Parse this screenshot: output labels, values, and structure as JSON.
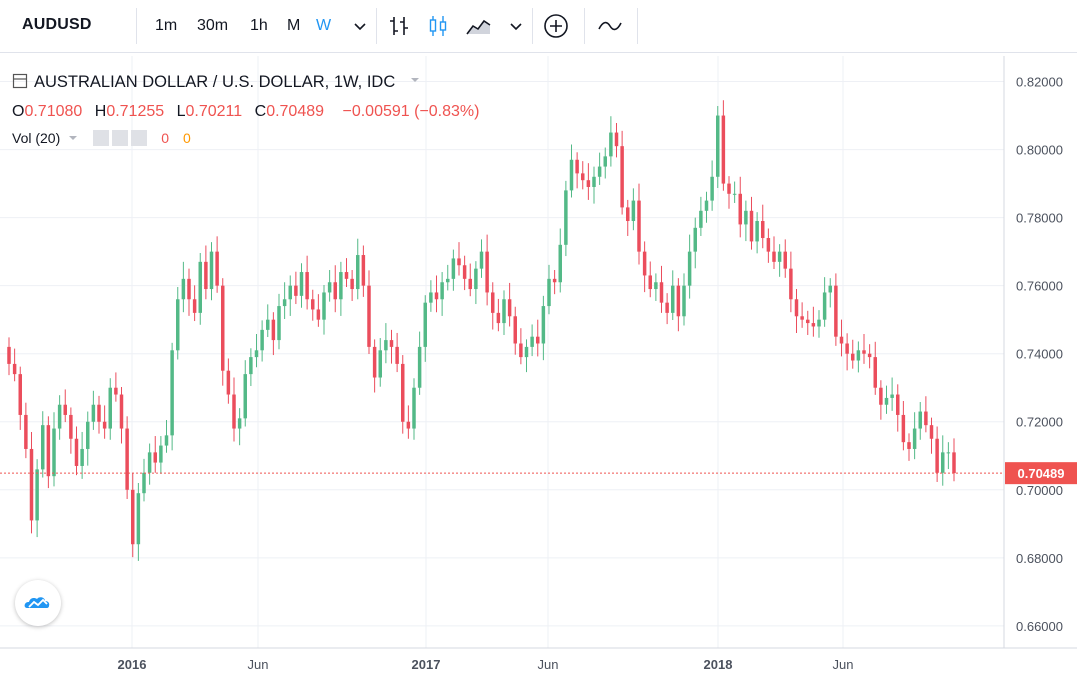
{
  "toolbar": {
    "symbol": "AUDUSD",
    "intervals": [
      "1m",
      "30m",
      "1h",
      "M",
      "W"
    ],
    "active_interval": "W"
  },
  "legend": {
    "title": "AUSTRALIAN DOLLAR / U.S. DOLLAR, 1W, IDC",
    "open_label": "O",
    "open": "0.71080",
    "high_label": "H",
    "high": "0.71255",
    "low_label": "L",
    "low": "0.70211",
    "close_label": "C",
    "close": "0.70489",
    "change": "−0.00591 (−0.83%)",
    "volume_label": "Vol (20)",
    "volume_value": "0",
    "volume_ma_value": "0"
  },
  "colors": {
    "up": "#53b987",
    "down": "#eb4d5c",
    "grid": "#f0f3fa",
    "axis_text": "#4c525e",
    "accent": "#2196f3"
  },
  "chart_data": {
    "type": "candlestick",
    "title": "AUSTRALIAN DOLLAR / U.S. DOLLAR, 1W, IDC",
    "last_price": 0.70489,
    "y_ticks": [
      "0.82000",
      "0.80000",
      "0.78000",
      "0.76000",
      "0.74000",
      "0.72000",
      "0.70000",
      "0.68000",
      "0.66000"
    ],
    "y_range": [
      0.6535,
      0.8275
    ],
    "x_labels": [
      "2016",
      "Jun",
      "2017",
      "Jun",
      "2018",
      "Jun"
    ],
    "closes": [
      0.737,
      0.734,
      0.722,
      0.712,
      0.691,
      0.706,
      0.719,
      0.704,
      0.718,
      0.725,
      0.722,
      0.715,
      0.707,
      0.712,
      0.72,
      0.725,
      0.72,
      0.718,
      0.73,
      0.728,
      0.718,
      0.7,
      0.684,
      0.699,
      0.705,
      0.711,
      0.708,
      0.713,
      0.716,
      0.741,
      0.756,
      0.762,
      0.756,
      0.752,
      0.767,
      0.759,
      0.77,
      0.76,
      0.735,
      0.728,
      0.718,
      0.721,
      0.734,
      0.739,
      0.741,
      0.747,
      0.75,
      0.744,
      0.754,
      0.756,
      0.76,
      0.757,
      0.764,
      0.756,
      0.753,
      0.75,
      0.758,
      0.761,
      0.756,
      0.764,
      0.762,
      0.759,
      0.769,
      0.76,
      0.742,
      0.733,
      0.741,
      0.744,
      0.742,
      0.737,
      0.72,
      0.718,
      0.73,
      0.742,
      0.755,
      0.758,
      0.756,
      0.761,
      0.762,
      0.768,
      0.766,
      0.762,
      0.759,
      0.765,
      0.77,
      0.758,
      0.752,
      0.749,
      0.756,
      0.751,
      0.743,
      0.739,
      0.742,
      0.745,
      0.743,
      0.754,
      0.762,
      0.761,
      0.772,
      0.788,
      0.797,
      0.793,
      0.791,
      0.789,
      0.792,
      0.795,
      0.798,
      0.805,
      0.801,
      0.783,
      0.779,
      0.785,
      0.77,
      0.763,
      0.759,
      0.761,
      0.755,
      0.752,
      0.76,
      0.751,
      0.76,
      0.77,
      0.777,
      0.782,
      0.785,
      0.792,
      0.81,
      0.79,
      0.787,
      0.787,
      0.778,
      0.782,
      0.773,
      0.779,
      0.774,
      0.77,
      0.767,
      0.77,
      0.765,
      0.756,
      0.751,
      0.75,
      0.749,
      0.748,
      0.75,
      0.758,
      0.76,
      0.745,
      0.743,
      0.74,
      0.738,
      0.741,
      0.74,
      0.739,
      0.73,
      0.725,
      0.727,
      0.728,
      0.722,
      0.714,
      0.712,
      0.718,
      0.723,
      0.719,
      0.715,
      0.705,
      0.711,
      0.711,
      0.7049
    ]
  }
}
